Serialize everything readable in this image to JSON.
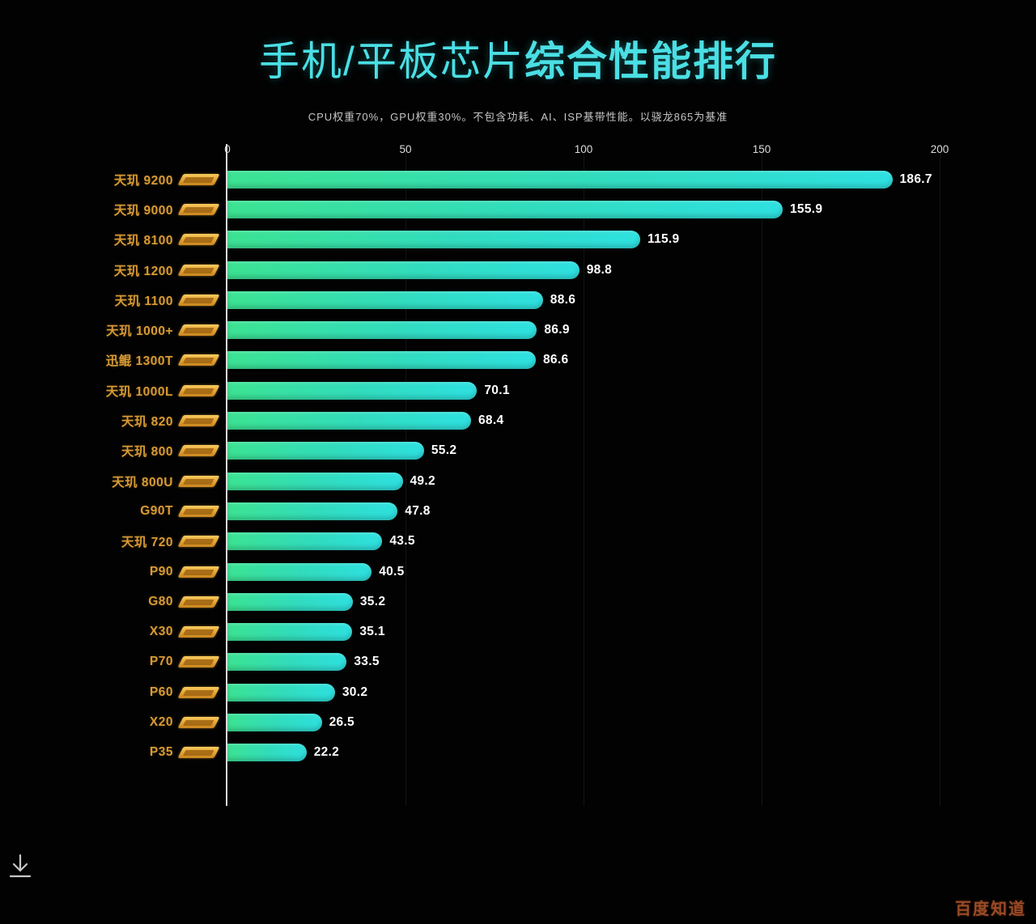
{
  "header": {
    "title_part1": "手机/平板芯片",
    "title_part2": "综合性能排行",
    "subtitle": "CPU权重70%，GPU权重30%。不包含功耗、AI、ISP基带性能。以骁龙865为基准"
  },
  "colors": {
    "background": "#020202",
    "title": "#4adfe4",
    "bar_gradient_start": "#3ce392",
    "bar_gradient_end": "#2ee0e0",
    "chip_label": "#d79a35",
    "badge_gold": "#e8a93a",
    "value_text": "#ffffff",
    "axis_line": "#d9d9d9",
    "watermark": "#9a4a27"
  },
  "chart_data": {
    "type": "bar",
    "orientation": "horizontal",
    "title": "手机/平板芯片综合性能排行",
    "subtitle": "CPU权重70%，GPU权重30%。不包含功耗、AI、ISP基带性能。以骁龙865为基准",
    "xlabel": "",
    "ylabel": "",
    "xlim": [
      0,
      200
    ],
    "x_ticks": [
      0,
      50,
      100,
      150,
      200
    ],
    "grid": true,
    "legend": false,
    "categories": [
      "天玑 9200",
      "天玑 9000",
      "天玑 8100",
      "天玑 1200",
      "天玑 1100",
      "天玑 1000+",
      "迅鲲 1300T",
      "天玑 1000L",
      "天玑 820",
      "天玑 800",
      "天玑 800U",
      "G90T",
      "天玑 720",
      "P90",
      "G80",
      "X30",
      "P70",
      "P60",
      "X20",
      "P35"
    ],
    "values": [
      186.7,
      155.9,
      115.9,
      98.8,
      88.6,
      86.9,
      86.6,
      70.1,
      68.4,
      55.2,
      49.2,
      47.8,
      43.5,
      40.5,
      35.2,
      35.1,
      33.5,
      30.2,
      26.5,
      22.2
    ],
    "badge": "mediatek-logo-badge"
  },
  "footer": {
    "download_icon": "download-icon",
    "watermark": "百度知道"
  }
}
